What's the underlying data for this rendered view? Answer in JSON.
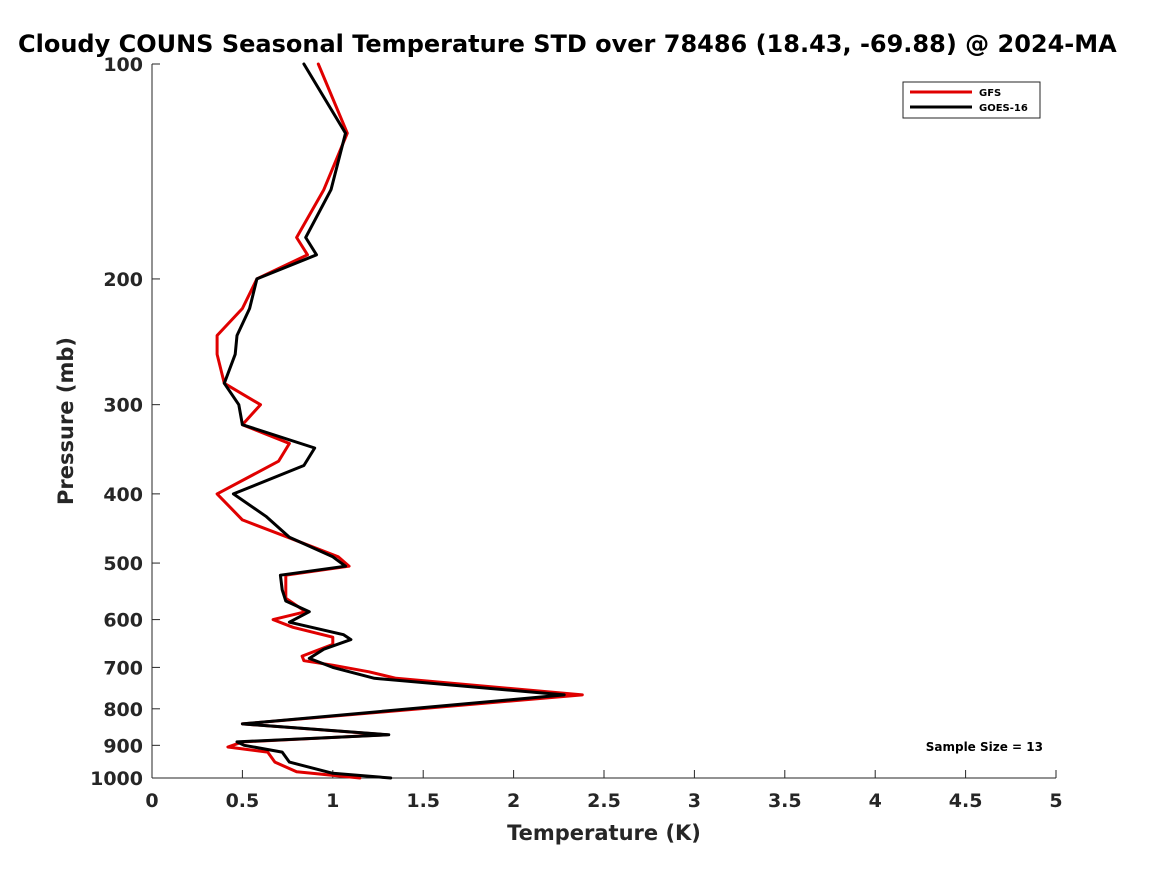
{
  "chart_data": {
    "type": "line",
    "title": "Cloudy COUNS Seasonal Temperature STD over 78486 (18.43, -69.88) @ 2024-MA",
    "xlabel": "Temperature (K)",
    "ylabel": "Pressure (mb)",
    "xlim": [
      0,
      5
    ],
    "ylim": [
      100,
      1000
    ],
    "y_scale": "log",
    "y_reversed": true,
    "x_ticks": [
      0,
      0.5,
      1,
      1.5,
      2,
      2.5,
      3,
      3.5,
      4,
      4.5,
      5
    ],
    "x_tick_labels": [
      "0",
      "0.5",
      "1",
      "1.5",
      "2",
      "2.5",
      "3",
      "3.5",
      "4",
      "4.5",
      "5"
    ],
    "y_ticks": [
      100,
      200,
      300,
      400,
      500,
      600,
      700,
      800,
      900,
      1000
    ],
    "y_tick_labels": [
      "100",
      "200",
      "300",
      "400",
      "500",
      "600",
      "700",
      "800",
      "900",
      "1000"
    ],
    "grid": false,
    "legend_position": "top-right",
    "annotation": "Sample Size = 13",
    "series": [
      {
        "name": "GFS",
        "color": "#e00000",
        "points": [
          [
            0.92,
            100
          ],
          [
            1.08,
            125
          ],
          [
            0.95,
            150
          ],
          [
            0.8,
            175
          ],
          [
            0.86,
            185
          ],
          [
            0.58,
            200
          ],
          [
            0.5,
            220
          ],
          [
            0.36,
            240
          ],
          [
            0.36,
            255
          ],
          [
            0.4,
            280
          ],
          [
            0.6,
            300
          ],
          [
            0.5,
            320
          ],
          [
            0.76,
            340
          ],
          [
            0.7,
            360
          ],
          [
            0.36,
            400
          ],
          [
            0.5,
            435
          ],
          [
            0.75,
            460
          ],
          [
            1.03,
            490
          ],
          [
            1.09,
            505
          ],
          [
            0.74,
            520
          ],
          [
            0.74,
            560
          ],
          [
            0.85,
            585
          ],
          [
            0.67,
            600
          ],
          [
            0.78,
            615
          ],
          [
            1.0,
            635
          ],
          [
            1.0,
            650
          ],
          [
            0.83,
            675
          ],
          [
            0.84,
            685
          ],
          [
            1.0,
            695
          ],
          [
            1.2,
            710
          ],
          [
            1.35,
            725
          ],
          [
            2.38,
            765
          ],
          [
            0.5,
            840
          ],
          [
            1.3,
            870
          ],
          [
            0.5,
            890
          ],
          [
            0.42,
            905
          ],
          [
            0.64,
            920
          ],
          [
            0.68,
            950
          ],
          [
            0.8,
            980
          ],
          [
            1.15,
            1000
          ]
        ]
      },
      {
        "name": "GOES-16",
        "color": "#000000",
        "points": [
          [
            0.84,
            100
          ],
          [
            1.07,
            125
          ],
          [
            0.99,
            150
          ],
          [
            0.85,
            175
          ],
          [
            0.91,
            185
          ],
          [
            0.58,
            200
          ],
          [
            0.54,
            220
          ],
          [
            0.47,
            240
          ],
          [
            0.46,
            255
          ],
          [
            0.4,
            280
          ],
          [
            0.48,
            300
          ],
          [
            0.5,
            320
          ],
          [
            0.9,
            345
          ],
          [
            0.84,
            365
          ],
          [
            0.45,
            400
          ],
          [
            0.63,
            430
          ],
          [
            0.76,
            460
          ],
          [
            1.0,
            490
          ],
          [
            1.07,
            505
          ],
          [
            0.71,
            520
          ],
          [
            0.72,
            545
          ],
          [
            0.74,
            565
          ],
          [
            0.87,
            585
          ],
          [
            0.76,
            605
          ],
          [
            1.06,
            630
          ],
          [
            1.1,
            640
          ],
          [
            0.95,
            660
          ],
          [
            0.87,
            680
          ],
          [
            1.0,
            700
          ],
          [
            1.23,
            725
          ],
          [
            2.28,
            765
          ],
          [
            0.5,
            840
          ],
          [
            1.31,
            870
          ],
          [
            0.47,
            890
          ],
          [
            0.51,
            900
          ],
          [
            0.72,
            920
          ],
          [
            0.76,
            950
          ],
          [
            1.0,
            985
          ],
          [
            1.32,
            1000
          ]
        ]
      }
    ]
  }
}
